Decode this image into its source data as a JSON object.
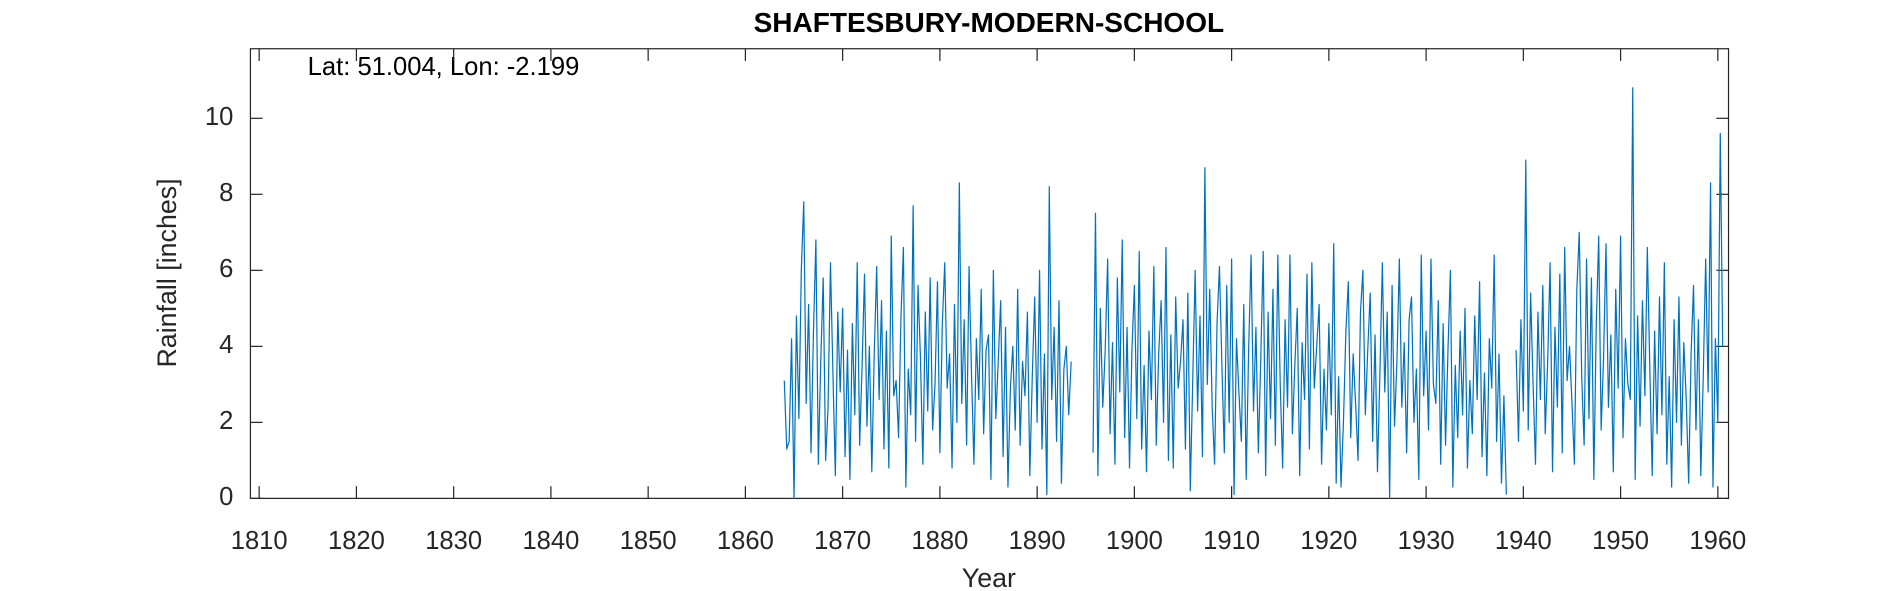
{
  "chart_data": {
    "type": "line",
    "title": "SHAFTESBURY-MODERN-SCHOOL",
    "annotation": "Lat: 51.004, Lon: -2.199",
    "xlabel": "Year",
    "ylabel": "Rainfall [inches]",
    "color": "#0072bd",
    "xlim": [
      1809.1,
      1961.1
    ],
    "ylim": [
      0,
      11.83
    ],
    "xticks": [
      1810,
      1820,
      1830,
      1840,
      1850,
      1860,
      1870,
      1880,
      1890,
      1900,
      1910,
      1920,
      1930,
      1940,
      1950,
      1960
    ],
    "yticks": [
      0,
      2,
      4,
      6,
      8,
      10
    ],
    "x": [
      1864,
      1864.25,
      1864.5,
      1864.75,
      1865,
      1865.25,
      1865.5,
      1865.75,
      1866,
      1866.25,
      1866.5,
      1866.75,
      1867,
      1867.25,
      1867.5,
      1867.75,
      1868,
      1868.25,
      1868.5,
      1868.75,
      1869,
      1869.25,
      1869.5,
      1869.75,
      1870,
      1870.25,
      1870.5,
      1870.75,
      1871,
      1871.25,
      1871.5,
      1871.75,
      1872,
      1872.25,
      1872.5,
      1872.75,
      1873,
      1873.25,
      1873.5,
      1873.75,
      1874,
      1874.25,
      1874.5,
      1874.75,
      1875,
      1875.25,
      1875.5,
      1875.75,
      1876,
      1876.25,
      1876.5,
      1876.75,
      1877,
      1877.25,
      1877.5,
      1877.75,
      1878,
      1878.25,
      1878.5,
      1878.75,
      1879,
      1879.25,
      1879.5,
      1879.75,
      1880,
      1880.25,
      1880.5,
      1880.75,
      1881,
      1881.25,
      1881.5,
      1881.75,
      1882,
      1882.25,
      1882.5,
      1882.75,
      1883,
      1883.25,
      1883.5,
      1883.75,
      1884,
      1884.25,
      1884.5,
      1884.75,
      1885,
      1885.25,
      1885.5,
      1885.75,
      1886,
      1886.25,
      1886.5,
      1886.75,
      1887,
      1887.25,
      1887.5,
      1887.75,
      1888,
      1888.25,
      1888.5,
      1888.75,
      1889,
      1889.25,
      1889.5,
      1889.75,
      1890,
      1890.25,
      1890.5,
      1890.75,
      1891,
      1891.25,
      1891.5,
      1891.75,
      1892,
      1892.25,
      1892.5,
      1892.75,
      1893,
      1893.25,
      1893.5,
      1893.75,
      1894,
      1894.25,
      1894.5,
      1894.75,
      1895,
      1895.25,
      1895.5,
      1895.75,
      1896,
      1896.25,
      1896.5,
      1896.75,
      1897,
      1897.25,
      1897.5,
      1897.75,
      1898,
      1898.25,
      1898.5,
      1898.75,
      1899,
      1899.25,
      1899.5,
      1899.75,
      1900,
      1900.25,
      1900.5,
      1900.75,
      1901,
      1901.25,
      1901.5,
      1901.75,
      1902,
      1902.25,
      1902.5,
      1902.75,
      1903,
      1903.25,
      1903.5,
      1903.75,
      1904,
      1904.25,
      1904.5,
      1904.75,
      1905,
      1905.25,
      1905.5,
      1905.75,
      1906,
      1906.25,
      1906.5,
      1906.75,
      1907,
      1907.25,
      1907.5,
      1907.75,
      1908,
      1908.25,
      1908.5,
      1908.75,
      1909,
      1909.25,
      1909.5,
      1909.75,
      1910,
      1910.25,
      1910.5,
      1910.75,
      1911,
      1911.25,
      1911.5,
      1911.75,
      1912,
      1912.25,
      1912.5,
      1912.75,
      1913,
      1913.25,
      1913.5,
      1913.75,
      1914,
      1914.25,
      1914.5,
      1914.75,
      1915,
      1915.25,
      1915.5,
      1915.75,
      1916,
      1916.25,
      1916.5,
      1916.75,
      1917,
      1917.25,
      1917.5,
      1917.75,
      1918,
      1918.25,
      1918.5,
      1918.75,
      1919,
      1919.25,
      1919.5,
      1919.75,
      1920,
      1920.25,
      1920.5,
      1920.75,
      1921,
      1921.25,
      1921.5,
      1921.75,
      1922,
      1922.25,
      1922.5,
      1922.75,
      1923,
      1923.25,
      1923.5,
      1923.75,
      1924,
      1924.25,
      1924.5,
      1924.75,
      1925,
      1925.25,
      1925.5,
      1925.75,
      1926,
      1926.25,
      1926.5,
      1926.75,
      1927,
      1927.25,
      1927.5,
      1927.75,
      1928,
      1928.25,
      1928.5,
      1928.75,
      1929,
      1929.25,
      1929.5,
      1929.75,
      1930,
      1930.25,
      1930.5,
      1930.75,
      1931,
      1931.25,
      1931.5,
      1931.75,
      1932,
      1932.25,
      1932.5,
      1932.75,
      1933,
      1933.25,
      1933.5,
      1933.75,
      1934,
      1934.25,
      1934.5,
      1934.75,
      1935,
      1935.25,
      1935.5,
      1935.75,
      1936,
      1936.25,
      1936.5,
      1936.75,
      1937,
      1937.25,
      1937.5,
      1937.75,
      1938,
      1938.25,
      1938.5,
      1938.75,
      1939,
      1939.25,
      1939.5,
      1939.75,
      1940,
      1940.25,
      1940.5,
      1940.75,
      1941,
      1941.25,
      1941.5,
      1941.75,
      1942,
      1942.25,
      1942.5,
      1942.75,
      1943,
      1943.25,
      1943.5,
      1943.75,
      1944,
      1944.25,
      1944.5,
      1944.75,
      1945,
      1945.25,
      1945.5,
      1945.75,
      1946,
      1946.25,
      1946.5,
      1946.75,
      1947,
      1947.25,
      1947.5,
      1947.75,
      1948,
      1948.25,
      1948.5,
      1948.75,
      1949,
      1949.25,
      1949.5,
      1949.75,
      1950,
      1950.25,
      1950.5,
      1950.75,
      1951,
      1951.25,
      1951.5,
      1951.75,
      1952,
      1952.25,
      1952.5,
      1952.75,
      1953,
      1953.25,
      1953.5,
      1953.75,
      1954,
      1954.25,
      1954.5,
      1954.75,
      1955,
      1955.25,
      1955.5,
      1955.75,
      1956,
      1956.25,
      1956.5,
      1956.75,
      1957,
      1957.25,
      1957.5,
      1957.75,
      1958,
      1958.25,
      1958.5,
      1958.75,
      1959,
      1959.25,
      1959.5,
      1959.75,
      1960,
      1960.25,
      1960.5
    ],
    "values": [
      3.1,
      1.3,
      1.5,
      4.2,
      0,
      4.8,
      2.1,
      6.0,
      7.8,
      2.5,
      5.1,
      1.2,
      4.4,
      6.8,
      0.9,
      3.6,
      5.8,
      1.0,
      2.4,
      6.2,
      3.3,
      0.6,
      4.9,
      2.8,
      5.0,
      1.1,
      3.9,
      0.5,
      4.6,
      2.2,
      6.2,
      1.4,
      3.5,
      5.9,
      1.9,
      4.0,
      0.7,
      3.8,
      6.1,
      2.6,
      5.2,
      1.3,
      4.4,
      0.8,
      6.9,
      2.7,
      3.1,
      1.6,
      4.8,
      6.6,
      0.3,
      3.4,
      2.2,
      7.7,
      1.5,
      5.6,
      3.7,
      0.9,
      4.9,
      2.3,
      5.8,
      1.8,
      3.0,
      5.7,
      1.2,
      4.6,
      6.2,
      2.9,
      3.8,
      0.8,
      5.1,
      2.0,
      8.3,
      2.5,
      4.7,
      1.4,
      6.1,
      3.3,
      0.9,
      4.2,
      2.6,
      5.5,
      1.7,
      3.9,
      4.3,
      0.5,
      6.0,
      2.1,
      3.6,
      5.2,
      1.1,
      4.5,
      0.3,
      2.9,
      4.0,
      1.8,
      5.5,
      1.4,
      3.6,
      2.7,
      4.9,
      0.6,
      3.2,
      5.3,
      2.0,
      6.0,
      1.3,
      3.8,
      0.1,
      8.2,
      2.6,
      4.5,
      1.5,
      5.2,
      0.4,
      3.4,
      4.0,
      2.2,
      3.6,
      null,
      null,
      null,
      null,
      null,
      null,
      null,
      null,
      1.2,
      7.5,
      0.6,
      5.0,
      2.4,
      3.9,
      6.3,
      1.7,
      4.1,
      0.9,
      5.8,
      2.8,
      6.8,
      1.6,
      4.5,
      0.8,
      3.9,
      5.6,
      2.1,
      6.5,
      1.3,
      3.5,
      0.7,
      4.4,
      2.6,
      6.1,
      1.4,
      3.8,
      5.2,
      2.0,
      6.6,
      1.0,
      4.3,
      0.8,
      5.3,
      2.9,
      3.6,
      4.7,
      1.3,
      5.4,
      0.2,
      3.1,
      6.0,
      2.3,
      4.8,
      1.1,
      8.7,
      3.0,
      5.5,
      2.4,
      0.9,
      4.6,
      6.1,
      3.5,
      1.2,
      5.6,
      2.0,
      6.3,
      0.1,
      4.2,
      2.8,
      1.5,
      5.1,
      0.5,
      3.9,
      6.4,
      2.3,
      4.5,
      1.2,
      3.7,
      6.5,
      0.6,
      4.9,
      2.1,
      5.5,
      1.4,
      6.4,
      3.0,
      0.8,
      4.7,
      2.4,
      6.4,
      1.7,
      3.5,
      5.0,
      0.6,
      4.1,
      2.6,
      5.9,
      1.3,
      6.2,
      2.9,
      4.0,
      5.1,
      0.9,
      3.4,
      1.8,
      4.6,
      2.2,
      6.7,
      0.4,
      3.2,
      0.3,
      2.0,
      4.4,
      5.7,
      1.6,
      3.8,
      2.5,
      1.0,
      4.9,
      6.0,
      2.2,
      3.9,
      5.4,
      1.5,
      4.3,
      0.7,
      3.3,
      6.2,
      2.8,
      4.9,
      0.0,
      5.6,
      1.9,
      3.6,
      6.3,
      2.4,
      4.1,
      1.2,
      4.7,
      5.3,
      2.0,
      3.4,
      0.5,
      6.4,
      2.7,
      4.4,
      1.8,
      6.3,
      3.0,
      2.5,
      5.2,
      0.9,
      4.6,
      1.4,
      3.9,
      6.0,
      0.3,
      3.5,
      1.6,
      4.4,
      2.2,
      5.0,
      0.8,
      3.1,
      1.7,
      4.8,
      2.6,
      5.7,
      1.1,
      3.3,
      0.6,
      4.2,
      2.9,
      6.4,
      1.5,
      3.8,
      0.4,
      2.7,
      0.1,
      null,
      null,
      null,
      3.9,
      1.5,
      4.7,
      2.3,
      8.9,
      1.8,
      5.4,
      3.0,
      0.9,
      4.9,
      2.6,
      5.6,
      1.7,
      3.6,
      6.2,
      0.7,
      4.5,
      2.4,
      5.9,
      1.2,
      6.6,
      3.1,
      4.0,
      2.5,
      0.9,
      5.5,
      7.0,
      3.2,
      1.4,
      6.3,
      2.1,
      5.8,
      0.5,
      4.6,
      6.9,
      1.8,
      3.7,
      6.7,
      2.4,
      4.3,
      0.7,
      5.5,
      2.9,
      6.9,
      1.6,
      4.2,
      3.0,
      2.6,
      10.8,
      0.5,
      4.8,
      1.9,
      5.2,
      2.7,
      6.6,
      3.5,
      0.6,
      4.4,
      1.7,
      5.3,
      2.2,
      6.2,
      0.9,
      3.2,
      0.3,
      4.7,
      2.0,
      5.3,
      1.4,
      4.1,
      2.6,
      0.4,
      3.8,
      5.6,
      1.8,
      4.7,
      0.6,
      3.2,
      6.3,
      2.8,
      8.3,
      0.3,
      4.2,
      2.0,
      9.6,
      4.0
    ]
  }
}
